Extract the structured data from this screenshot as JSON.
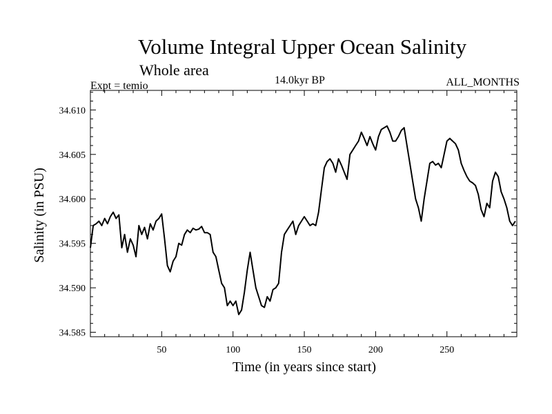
{
  "chart_data": {
    "type": "line",
    "title": "Volume Integral Upper Ocean Salinity",
    "subtitle": "Whole area",
    "left_label": "Expt = temio",
    "center_label": "14.0kyr BP",
    "right_label": "ALL_MONTHS",
    "xlabel": "Time (in years since start)",
    "ylabel": "Salinity (in PSU)",
    "xlim": [
      0,
      299
    ],
    "ylim": [
      34.5845,
      34.6122
    ],
    "x_ticks": [
      50,
      100,
      150,
      200,
      250
    ],
    "x_tick_labels": [
      "50",
      "100",
      "150",
      "200",
      "250"
    ],
    "y_ticks": [
      34.585,
      34.59,
      34.595,
      34.6,
      34.605,
      34.61
    ],
    "y_tick_labels": [
      "34.585",
      "34.590",
      "34.595",
      "34.600",
      "34.605",
      "34.610"
    ],
    "color": "#000000",
    "series": [
      {
        "name": "salinity",
        "x": [
          0,
          2,
          4,
          6,
          8,
          10,
          12,
          14,
          16,
          18,
          20,
          22,
          24,
          26,
          28,
          30,
          32,
          34,
          36,
          38,
          40,
          42,
          44,
          46,
          48,
          50,
          52,
          54,
          56,
          58,
          60,
          62,
          64,
          66,
          68,
          70,
          72,
          74,
          76,
          78,
          80,
          82,
          84,
          86,
          88,
          90,
          92,
          94,
          96,
          98,
          100,
          102,
          104,
          106,
          108,
          110,
          112,
          114,
          116,
          118,
          120,
          122,
          124,
          126,
          128,
          130,
          132,
          134,
          136,
          138,
          140,
          142,
          144,
          146,
          148,
          150,
          152,
          154,
          156,
          158,
          160,
          162,
          164,
          166,
          168,
          170,
          172,
          174,
          176,
          178,
          180,
          182,
          184,
          186,
          188,
          190,
          192,
          194,
          196,
          198,
          200,
          202,
          204,
          206,
          208,
          210,
          212,
          214,
          216,
          218,
          220,
          222,
          224,
          226,
          228,
          230,
          232,
          234,
          236,
          238,
          240,
          242,
          244,
          246,
          248,
          250,
          252,
          254,
          256,
          258,
          260,
          262,
          264,
          266,
          268,
          270,
          272,
          274,
          276,
          278,
          280,
          282,
          284,
          286,
          288,
          290,
          292,
          294,
          296,
          298
        ],
        "y": [
          34.5945,
          34.597,
          34.5972,
          34.5975,
          34.597,
          34.5978,
          34.5972,
          34.598,
          34.5985,
          34.5978,
          34.5982,
          34.5945,
          34.596,
          34.594,
          34.5955,
          34.5948,
          34.5935,
          34.597,
          34.596,
          34.5968,
          34.5955,
          34.5972,
          34.5965,
          34.5975,
          34.5978,
          34.5983,
          34.5955,
          34.5925,
          34.5918,
          34.593,
          34.5935,
          34.595,
          34.5948,
          34.596,
          34.5965,
          34.5962,
          34.5967,
          34.5965,
          34.5966,
          34.5969,
          34.5962,
          34.5962,
          34.596,
          34.594,
          34.5935,
          34.592,
          34.5905,
          34.59,
          34.588,
          34.5885,
          34.588,
          34.5885,
          34.587,
          34.5875,
          34.5895,
          34.592,
          34.594,
          34.592,
          34.59,
          34.589,
          34.588,
          34.5878,
          34.589,
          34.5885,
          34.5898,
          34.59,
          34.5905,
          34.594,
          34.596,
          34.5965,
          34.597,
          34.5975,
          34.596,
          34.597,
          34.5975,
          34.598,
          34.5975,
          34.597,
          34.5972,
          34.597,
          34.5985,
          34.601,
          34.6035,
          34.6042,
          34.6045,
          34.604,
          34.603,
          34.6045,
          34.6038,
          34.603,
          34.6022,
          34.605,
          34.6055,
          34.606,
          34.6065,
          34.6075,
          34.6068,
          34.606,
          34.607,
          34.6062,
          34.6055,
          34.607,
          34.6078,
          34.608,
          34.6082,
          34.6075,
          34.6065,
          34.6065,
          34.607,
          34.6077,
          34.608,
          34.606,
          34.604,
          34.602,
          34.6,
          34.599,
          34.5975,
          34.6,
          34.602,
          34.604,
          34.6042,
          34.6038,
          34.604,
          34.6035,
          34.605,
          34.6065,
          34.6068,
          34.6065,
          34.6062,
          34.6055,
          34.604,
          34.6032,
          34.6025,
          34.602,
          34.6018,
          34.6015,
          34.6005,
          34.5988,
          34.598,
          34.5995,
          34.599,
          34.602,
          34.603,
          34.6025,
          34.6008,
          34.6,
          34.599,
          34.5975,
          34.597,
          34.5975
        ]
      }
    ]
  }
}
